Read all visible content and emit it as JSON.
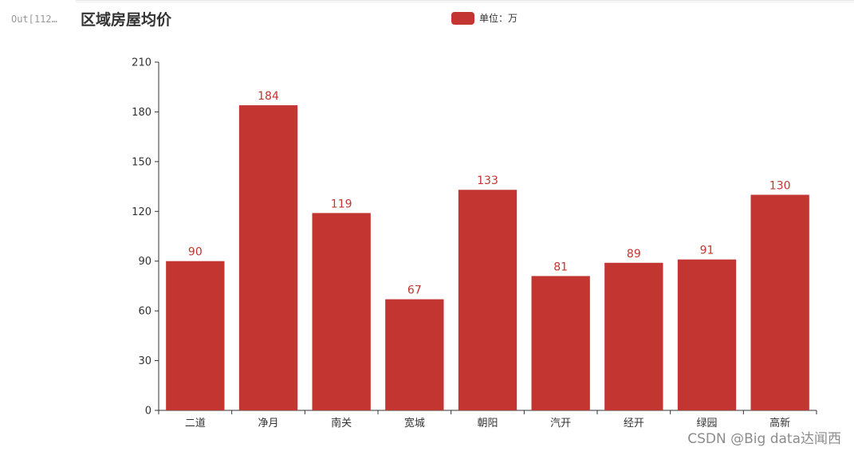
{
  "prompt": "Out[112…",
  "watermark": "CSDN @Big data达闻西",
  "colors": {
    "bar": "#c23531",
    "label": "#c23531",
    "axis": "#333333",
    "text": "#333333"
  },
  "chart_data": {
    "type": "bar",
    "title": "区域房屋均价",
    "legend": {
      "position": "top-center",
      "entries": [
        "单位：万"
      ]
    },
    "categories": [
      "二道",
      "净月",
      "南关",
      "宽城",
      "朝阳",
      "汽开",
      "经开",
      "绿园",
      "高新"
    ],
    "series": [
      {
        "name": "单位：万",
        "values": [
          90,
          184,
          119,
          67,
          133,
          81,
          89,
          91,
          130
        ]
      }
    ],
    "ylim": [
      0,
      210
    ],
    "yticks": [
      0,
      30,
      60,
      90,
      120,
      150,
      180,
      210
    ],
    "grid": false,
    "xlabel": "",
    "ylabel": ""
  }
}
